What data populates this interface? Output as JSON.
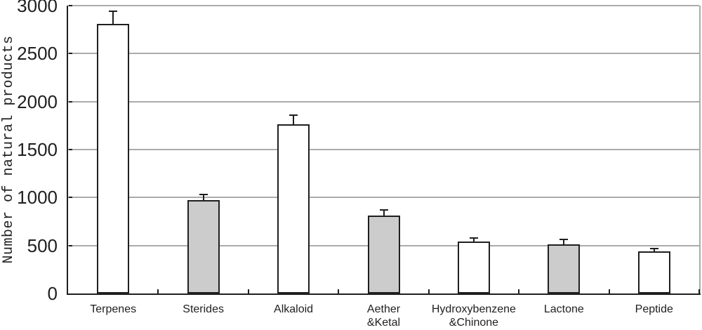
{
  "chart_data": {
    "type": "bar",
    "title": "",
    "xlabel": "",
    "ylabel": "Number of natural products",
    "ylim": [
      0,
      3000
    ],
    "ytick_step": 500,
    "yticks": [
      0,
      500,
      1000,
      1500,
      2000,
      2500,
      3000
    ],
    "grid": "horizontal-on",
    "legend": "none",
    "categories": [
      "Terpenes",
      "Sterides",
      "Alkaloid",
      "Aether\n&Ketal",
      "Hydroxybenzene\n&Chinone",
      "Lactone",
      "Peptide"
    ],
    "values": [
      2810,
      970,
      1760,
      815,
      540,
      515,
      440
    ],
    "error_plus": [
      135,
      65,
      95,
      55,
      40,
      45,
      25
    ],
    "bar_fills": [
      "#ffffff",
      "#cccccc",
      "#ffffff",
      "#cccccc",
      "#ffffff",
      "#cccccc",
      "#ffffff"
    ],
    "colors": {
      "bar_border": "#1f1f1f",
      "axis": "#1f1f1f",
      "gridline": "#ababab",
      "background": "#ffffff",
      "text": "#1f1f1f"
    }
  }
}
